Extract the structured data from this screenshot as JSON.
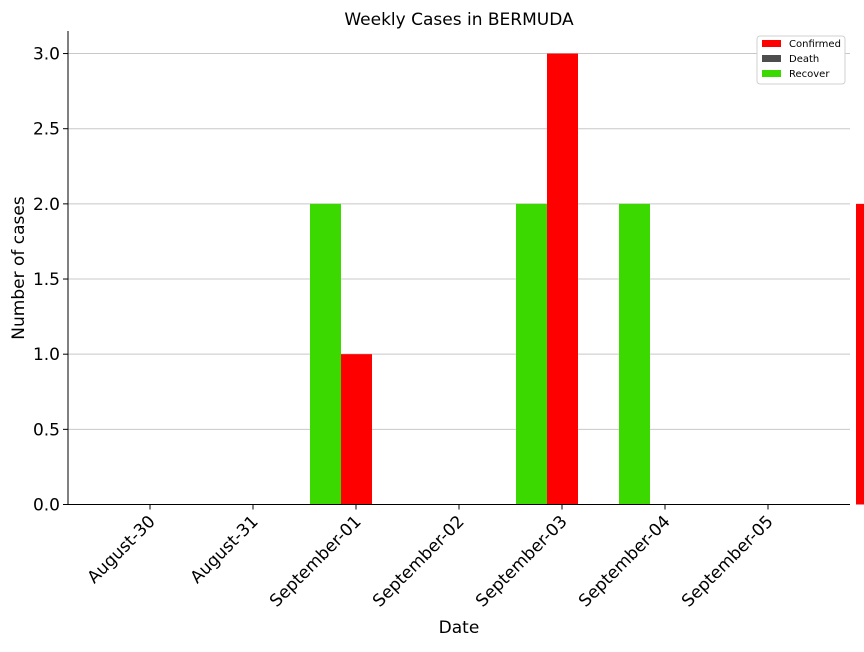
{
  "chart_data": {
    "type": "bar",
    "title": "Weekly Cases in BERMUDA",
    "xlabel": "Date",
    "ylabel": "Number of cases",
    "categories": [
      "August-30",
      "August-31",
      "September-01",
      "September-02",
      "September-03",
      "September-04",
      "September-05"
    ],
    "series": [
      {
        "name": "Confirmed",
        "color": "#ff0000",
        "values": [
          0,
          1,
          0,
          3,
          0,
          0,
          2
        ]
      },
      {
        "name": "Death",
        "color": "#4d4d4d",
        "values": [
          0,
          0,
          0,
          0,
          0,
          0,
          0
        ]
      },
      {
        "name": "Recover",
        "color": "#3cd900",
        "values": [
          0,
          2,
          0,
          2,
          2,
          0,
          0
        ]
      }
    ],
    "ylim": [
      0,
      3.15
    ],
    "yticks": [
      "0.0",
      "0.5",
      "1.0",
      "1.5",
      "2.0",
      "2.5",
      "3.0"
    ],
    "grid": "horizontal",
    "legend_position": "top-right"
  }
}
